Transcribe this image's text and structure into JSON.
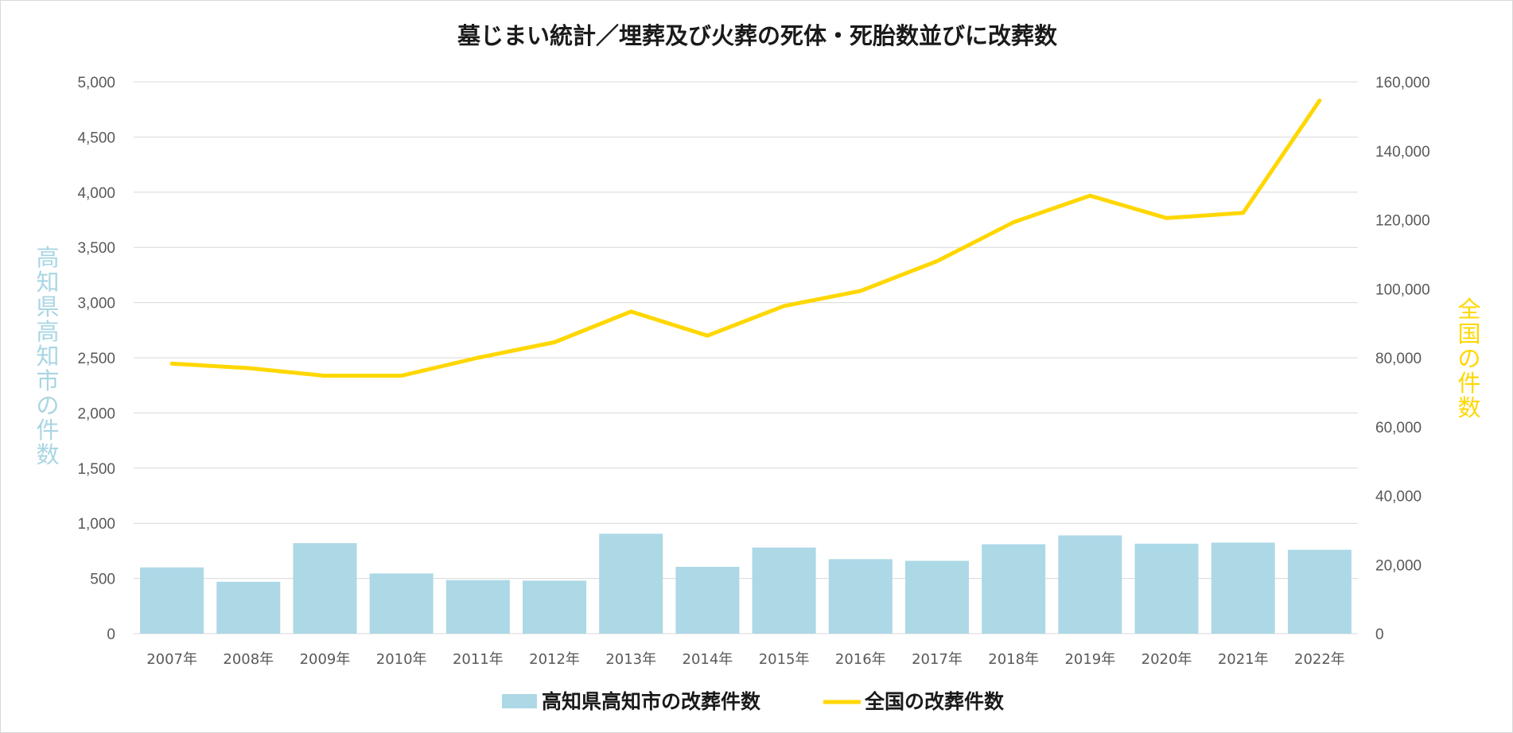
{
  "chart_data": {
    "type": "bar+line",
    "title": "墓じまい統計／埋葬及び火葬の死体・死胎数並びに改葬数",
    "categories": [
      "2007年",
      "2008年",
      "2009年",
      "2010年",
      "2011年",
      "2012年",
      "2013年",
      "2014年",
      "2015年",
      "2016年",
      "2017年",
      "2018年",
      "2019年",
      "2020年",
      "2021年",
      "2022年"
    ],
    "y_left": {
      "label": "高知県高知市の件数",
      "ylim": [
        0,
        5000
      ],
      "ticks": [
        "0",
        "500",
        "1,000",
        "1,500",
        "2,000",
        "2,500",
        "3,000",
        "3,500",
        "4,000",
        "4,500",
        "5,000"
      ],
      "color": "#a9d6e3"
    },
    "y_right": {
      "label": "全国の件数",
      "ylim": [
        0,
        160000
      ],
      "ticks": [
        "0",
        "20,000",
        "40,000",
        "60,000",
        "80,000",
        "100,000",
        "120,000",
        "140,000",
        "160,000"
      ],
      "color": "#ffd700"
    },
    "series": [
      {
        "name": "高知県高知市の改葬件数",
        "type": "bar",
        "axis": "left",
        "color": "#add8e6",
        "values": [
          600,
          470,
          820,
          545,
          485,
          480,
          905,
          605,
          780,
          675,
          660,
          810,
          890,
          815,
          825,
          760
        ]
      },
      {
        "name": "全国の改葬件数",
        "type": "line",
        "axis": "right",
        "color": "#ffd700",
        "values": [
          78300,
          77000,
          74800,
          74800,
          80000,
          84500,
          93400,
          86400,
          95000,
          99400,
          108000,
          119300,
          127000,
          120500,
          122000,
          154600
        ]
      }
    ],
    "grid": true,
    "legend": "bottom-center"
  }
}
